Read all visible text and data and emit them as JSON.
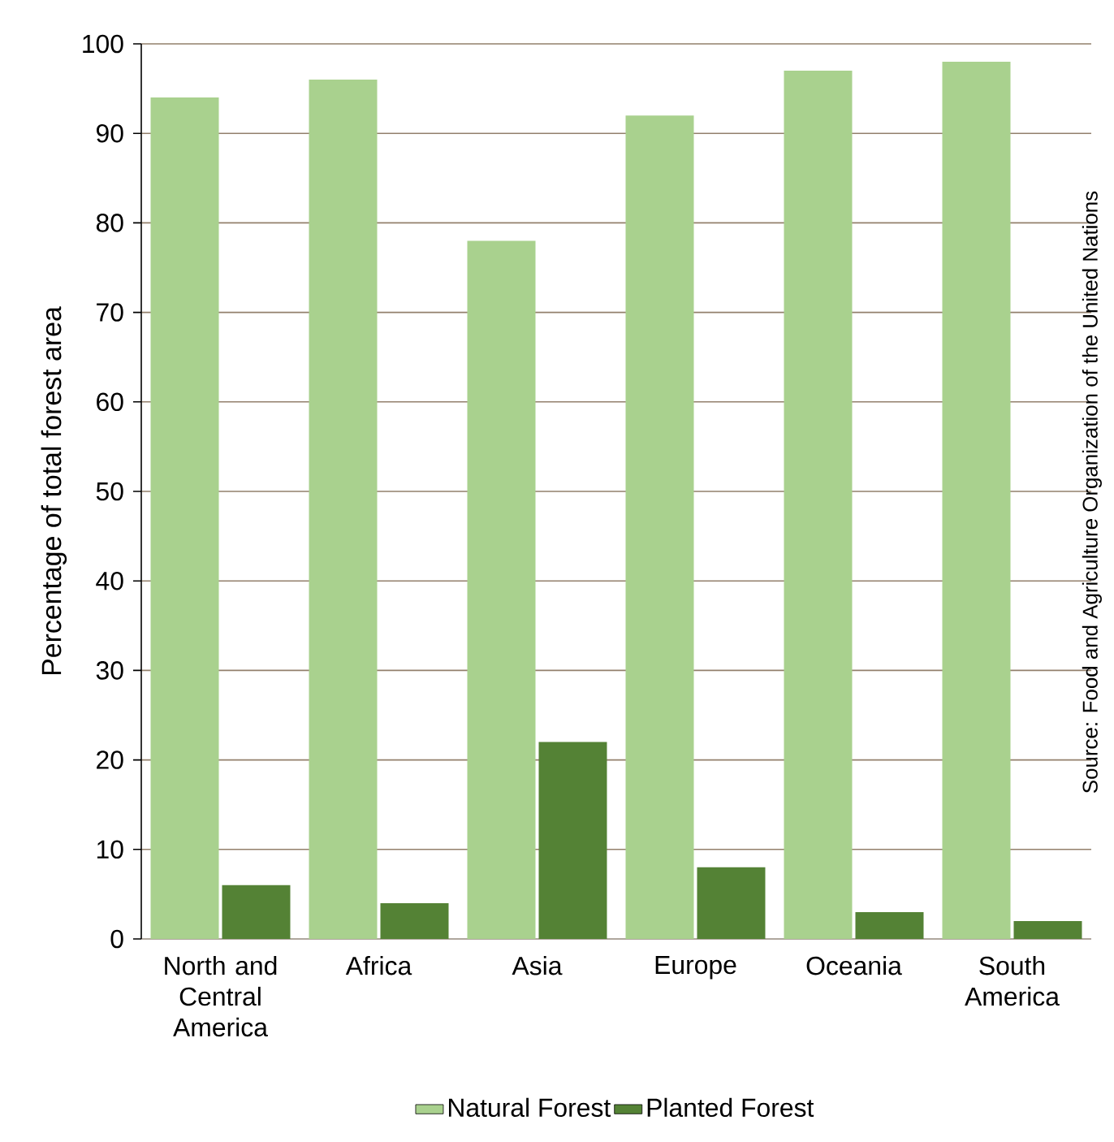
{
  "chart_data": {
    "type": "bar",
    "ylabel": "Percentage of total forest area",
    "categories": [
      "North and Central America",
      "Africa",
      "Asia",
      "Europe",
      "Oceania",
      "South America"
    ],
    "series": [
      {
        "name": "Natural Forest",
        "color": "#a9d18e",
        "values": [
          94,
          96,
          78,
          92,
          97,
          98
        ]
      },
      {
        "name": "Planted Forest",
        "color": "#548235",
        "values": [
          6,
          4,
          22,
          8,
          3,
          2
        ]
      }
    ],
    "ylim": [
      0,
      100
    ],
    "yticks": [
      0,
      10,
      20,
      30,
      40,
      50,
      60,
      70,
      80,
      90,
      100
    ],
    "grid": "y",
    "legend": "bottom",
    "annotations": [
      "Source: Food and Agriculture Organization of the United Nations"
    ]
  }
}
